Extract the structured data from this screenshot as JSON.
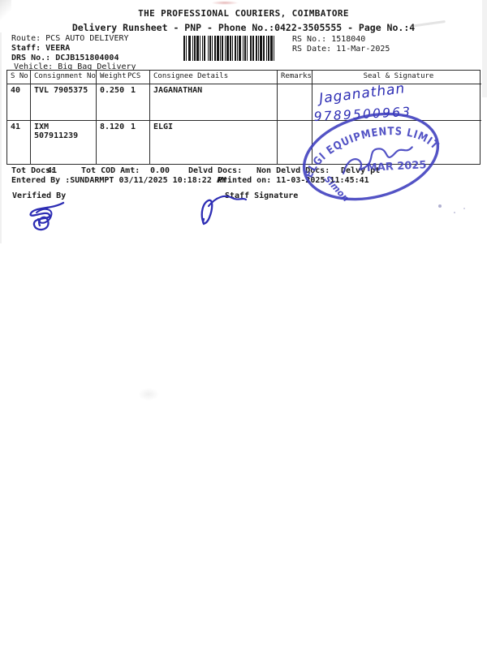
{
  "header": {
    "title": "THE PROFESSIONAL COURIERS, COIMBATORE",
    "subtitle": "Delivery Runsheet - PNP - Phone No.:0422-3505555 - Page No.:4"
  },
  "meta": {
    "route_label": "Route:",
    "route": "PCS AUTO DELIVERY",
    "staff_label": "Staff:",
    "staff": "VEERA",
    "drs_label": "DRS No.:",
    "drs": "DCJB151804004",
    "vehicle_label": "Vehicle:",
    "vehicle": "Big Bag Delivery",
    "rs_no_label": "RS No.:",
    "rs_no": "1518040",
    "rs_date_label": "RS Date:",
    "rs_date": "11-Mar-2025"
  },
  "barcode": {
    "pattern": "2112321121311211231121122131112211312112211132112113212221113122112131122"
  },
  "table": {
    "headers": [
      "S No",
      "Consignment No",
      "Weight",
      "PCS",
      "Consignee Details",
      "Remarks",
      "Seal & Signature"
    ],
    "rows": [
      {
        "s_no": "40",
        "consignment": "TVL 7905375",
        "weight": "0.250",
        "pcs": "1",
        "consignee": "JAGANATHAN",
        "remarks": ""
      },
      {
        "s_no": "41",
        "consignment": "IXM 507911239",
        "weight": "8.120",
        "pcs": "1",
        "consignee": "ELGI",
        "remarks": ""
      }
    ]
  },
  "totals": {
    "tot_docs_label": "Tot Docs:",
    "tot_docs": "41",
    "tot_cod_label": "Tot COD Amt:",
    "tot_cod": "0.00",
    "delvd_label": "Delvd Docs:",
    "non_delvd_label": "Non Delvd Docs:",
    "delvy_label": "Delvy pt"
  },
  "audit": {
    "entered_by_label": "Entered By :",
    "entered_by": "SUNDARMPT 03/11/2025 10:18:22 AM",
    "printed_label": "Printed on:",
    "printed": "11-03-2025 11:45:41"
  },
  "signoff": {
    "verified_by_label": "Verified By",
    "staff_signature_label": "Staff Signature"
  },
  "handwriting": {
    "name": "Jaganathan",
    "phone": "9789500963",
    "ink_color": "#2d2db4"
  },
  "stamp": {
    "arc_text": "ELGI EQUIPMENTS LIMITED",
    "date_text": "MAR 2025",
    "side_text": "Simon",
    "color": "#3c3cbe"
  }
}
